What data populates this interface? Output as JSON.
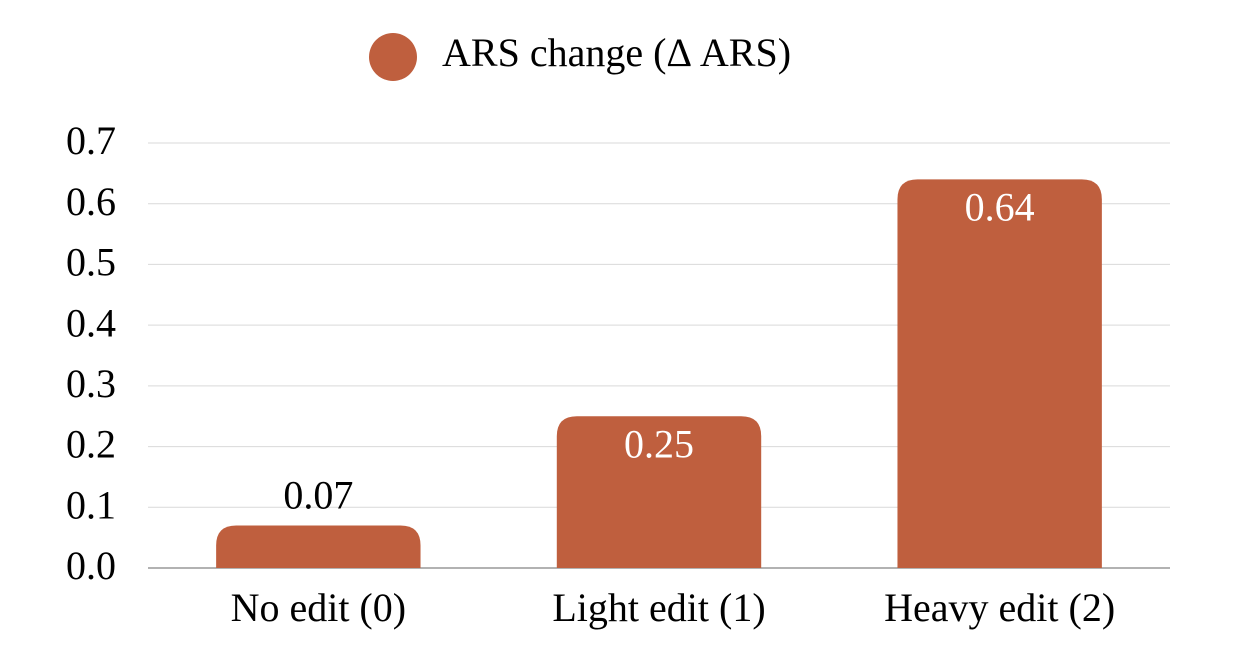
{
  "chart_data": {
    "type": "bar",
    "categories": [
      "No edit (0)",
      "Light edit (1)",
      "Heavy edit (2)"
    ],
    "series": [
      {
        "name": "ARS change (Δ ARS)",
        "color": "#bf5f3e",
        "values": [
          0.07,
          0.25,
          0.64
        ],
        "value_labels": [
          "0.07",
          "0.25",
          "0.64"
        ]
      }
    ],
    "ylim": [
      0,
      0.7
    ],
    "yticks": [
      {
        "value": 0,
        "label": "0.0"
      },
      0.1,
      0.2,
      0.3,
      0.4,
      0.5,
      0.6,
      0.7
    ],
    "grid": true,
    "legend": "top"
  }
}
